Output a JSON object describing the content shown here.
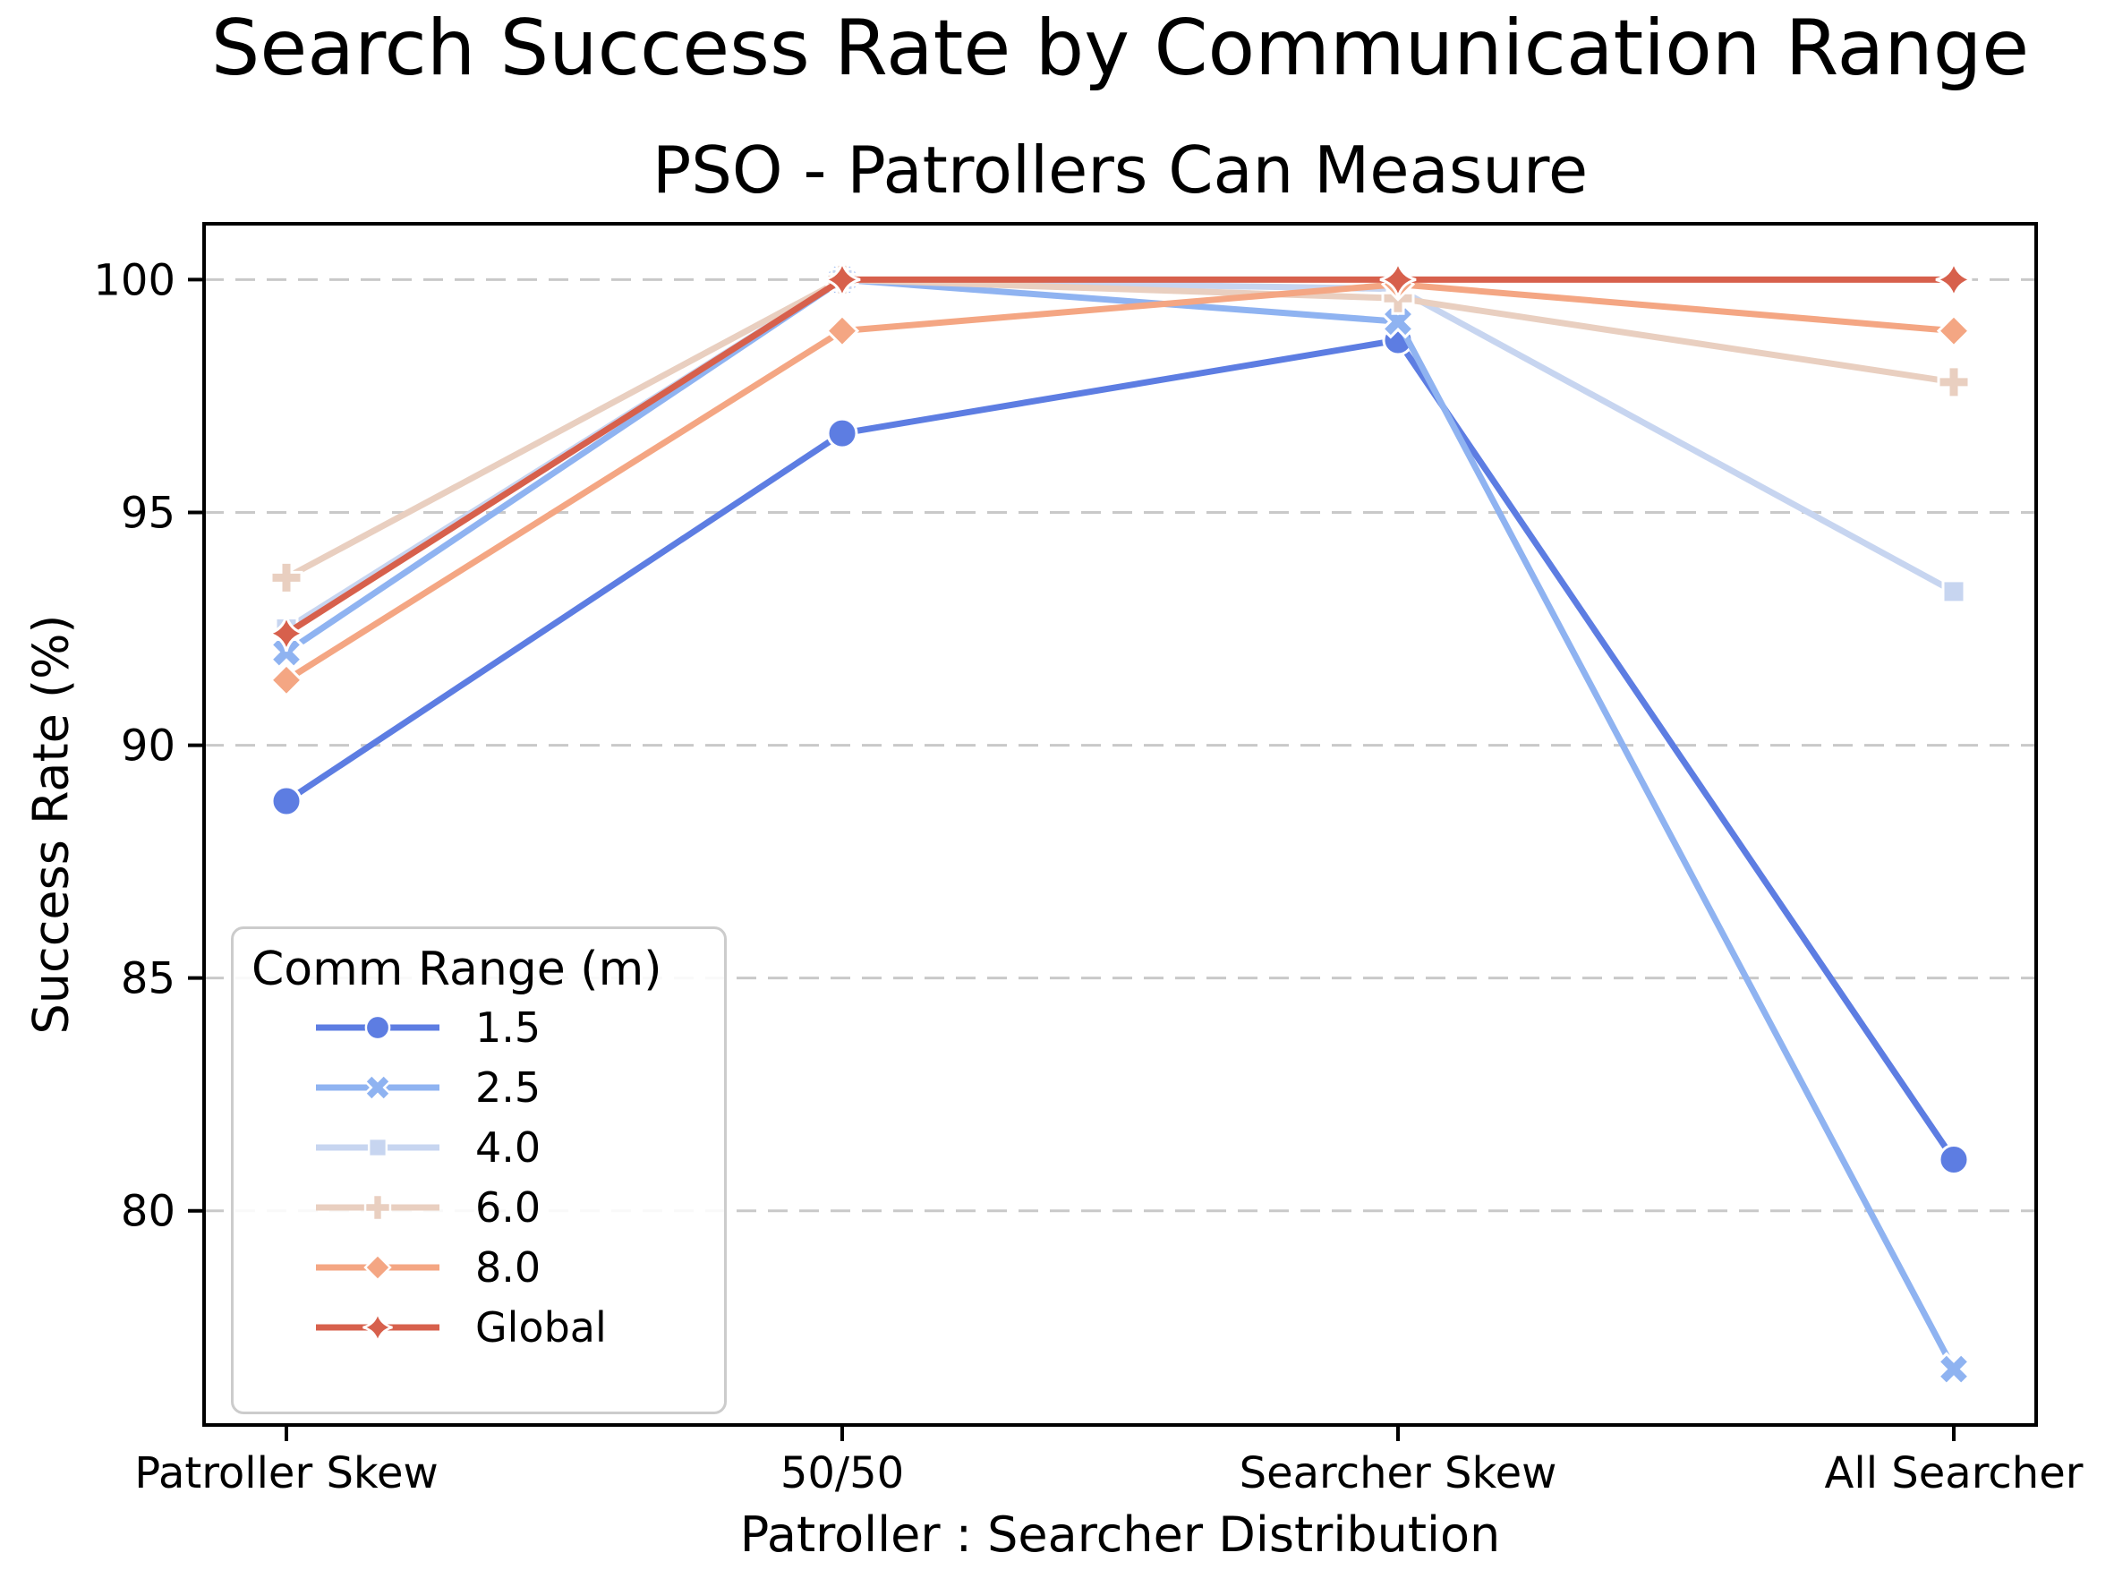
{
  "chart_data": {
    "type": "line",
    "title": "Search Success Rate by Communication Range",
    "subtitle": "PSO - Patrollers Can Measure",
    "xlabel": "Patroller : Searcher Distribution",
    "ylabel": "Success Rate (%)",
    "categories": [
      "Patroller Skew",
      "50/50",
      "Searcher Skew",
      "All Searcher"
    ],
    "yticks": [
      80,
      85,
      90,
      95,
      100
    ],
    "ylim": [
      75.4,
      101.2
    ],
    "grid": "horizontal dashed gridlines at y ticks",
    "grid_color": "#c9c9c9",
    "legend": {
      "title": "Comm Range (m)",
      "position": "lower left"
    },
    "series": [
      {
        "name": "1.5",
        "marker": "circle",
        "color": "#5d7de2",
        "values": [
          88.8,
          96.7,
          98.7,
          81.1
        ]
      },
      {
        "name": "2.5",
        "marker": "x",
        "color": "#8fb3f1",
        "values": [
          92.0,
          100.0,
          99.1,
          76.6
        ]
      },
      {
        "name": "4.0",
        "marker": "square",
        "color": "#c7d5f0",
        "values": [
          92.5,
          100.0,
          99.8,
          93.3
        ]
      },
      {
        "name": "6.0",
        "marker": "plus",
        "color": "#e9cfc0",
        "values": [
          93.6,
          100.0,
          99.6,
          97.8
        ]
      },
      {
        "name": "8.0",
        "marker": "diamond",
        "color": "#f4a683",
        "values": [
          91.4,
          98.9,
          99.9,
          98.9
        ]
      },
      {
        "name": "Global",
        "marker": "star4",
        "color": "#d7604c",
        "values": [
          92.4,
          100.0,
          100.0,
          100.0
        ]
      }
    ]
  }
}
